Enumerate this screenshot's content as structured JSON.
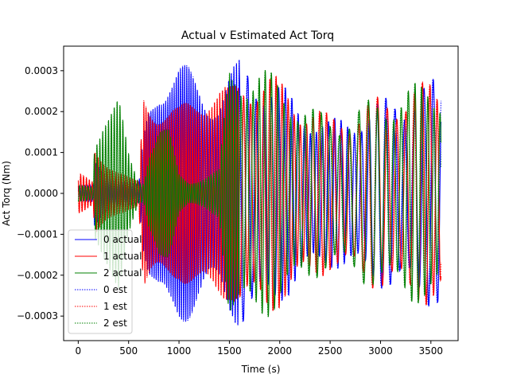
{
  "chart_data": {
    "type": "line",
    "title": "Actual v Estimated Act Torq",
    "xlabel": "Time (s)",
    "ylabel": "Act Torq (Nm)",
    "xlim": [
      -145,
      3770
    ],
    "ylim": [
      -0.00036,
      0.00036
    ],
    "xticks": [
      0,
      500,
      1000,
      1500,
      2000,
      2500,
      3000,
      3500
    ],
    "xtick_labels": [
      "0",
      "500",
      "1000",
      "1500",
      "2000",
      "2500",
      "3000",
      "3500"
    ],
    "yticks": [
      -0.0003,
      -0.0002,
      -0.0001,
      0.0,
      0.0001,
      0.0002,
      0.0003
    ],
    "ytick_labels": [
      "−0.0003",
      "−0.0002",
      "−0.0001",
      "0.0000",
      "0.0001",
      "0.0002",
      "0.0003"
    ],
    "grid": false,
    "legend_position": "lower-left",
    "series": [
      {
        "name": "0 actual",
        "color": "#0000ff",
        "style": "solid",
        "x": [
          0,
          150,
          160,
          250,
          400,
          500,
          600,
          650,
          700,
          800,
          900,
          1000,
          1100,
          1200,
          1300,
          1400,
          1500,
          1600,
          1700,
          1800,
          1900,
          2000,
          2100,
          2200,
          2300,
          2400,
          2500,
          2600,
          2700,
          2800,
          2900,
          3000,
          3100,
          3200,
          3300,
          3400,
          3500,
          3600
        ],
        "amp": [
          2e-05,
          2e-05,
          8e-05,
          6e-05,
          4e-05,
          3e-05,
          2e-05,
          0.00015,
          0.00022,
          0.0003,
          0.00033,
          0.00033,
          0.00031,
          0.00028,
          0.00026,
          0.00026,
          0.0003,
          0.00033,
          0.00033,
          0.00031,
          0.00029,
          0.00027,
          0.00025,
          0.00023,
          0.00021,
          0.00019,
          0.00018,
          0.00019,
          0.0002,
          0.00021,
          0.00022,
          0.00023,
          0.00024,
          0.00025,
          0.00026,
          0.00027,
          0.00028,
          0.00028
        ]
      },
      {
        "name": "1 actual",
        "color": "#ff0000",
        "style": "solid",
        "x": [
          0,
          150,
          160,
          250,
          400,
          500,
          600,
          650,
          700,
          800,
          900,
          1000,
          1100,
          1200,
          1300,
          1400,
          1500,
          1600,
          1700,
          1800,
          1900,
          2000,
          2100,
          2200,
          2300,
          2400,
          2500,
          2600,
          2700,
          2800,
          2900,
          3000,
          3100,
          3200,
          3300,
          3400,
          3500,
          3600
        ],
        "amp": [
          5e-05,
          3e-05,
          0.00012,
          0.0001,
          6e-05,
          4e-05,
          3e-05,
          0.00027,
          0.00026,
          0.00024,
          0.00022,
          0.00021,
          0.00024,
          0.00027,
          0.00028,
          0.00027,
          0.00026,
          0.00029,
          0.00031,
          0.00031,
          0.0003,
          0.00028,
          0.00026,
          0.00024,
          0.00023,
          0.00021,
          0.00019,
          0.0002,
          0.00021,
          0.00022,
          0.00023,
          0.00024,
          0.00025,
          0.00026,
          0.00027,
          0.00027,
          0.00028,
          0.00028
        ]
      },
      {
        "name": "2 actual",
        "color": "#008000",
        "style": "solid",
        "x": [
          0,
          150,
          160,
          250,
          400,
          500,
          600,
          650,
          700,
          800,
          900,
          1000,
          1100,
          1200,
          1300,
          1400,
          1500,
          1600,
          1700,
          1800,
          1900,
          2000,
          2100,
          2200,
          2300,
          2400,
          2500,
          2600,
          2700,
          2800,
          2900,
          3000,
          3100,
          3200,
          3300,
          3400,
          3500,
          3600
        ],
        "amp": [
          2e-05,
          2e-05,
          0.00015,
          0.00022,
          0.00024,
          0.0001,
          3e-05,
          3e-05,
          0.00012,
          0.00018,
          0.00016,
          5e-05,
          3e-05,
          4e-05,
          5e-05,
          6e-05,
          0.00032,
          0.00033,
          0.00033,
          0.00032,
          0.0003,
          0.00028,
          0.00026,
          0.00024,
          0.00022,
          0.0002,
          0.00019,
          0.0002,
          0.00021,
          0.00022,
          0.00023,
          0.00024,
          0.00025,
          0.00026,
          0.00027,
          0.00027,
          0.00028,
          0.00028
        ]
      },
      {
        "name": "0 est",
        "color": "#0000ff",
        "style": "dotted",
        "copy_of": 0
      },
      {
        "name": "1 est",
        "color": "#ff0000",
        "style": "dotted",
        "copy_of": 1
      },
      {
        "name": "2 est",
        "color": "#008000",
        "style": "dotted",
        "copy_of": 2
      }
    ]
  }
}
